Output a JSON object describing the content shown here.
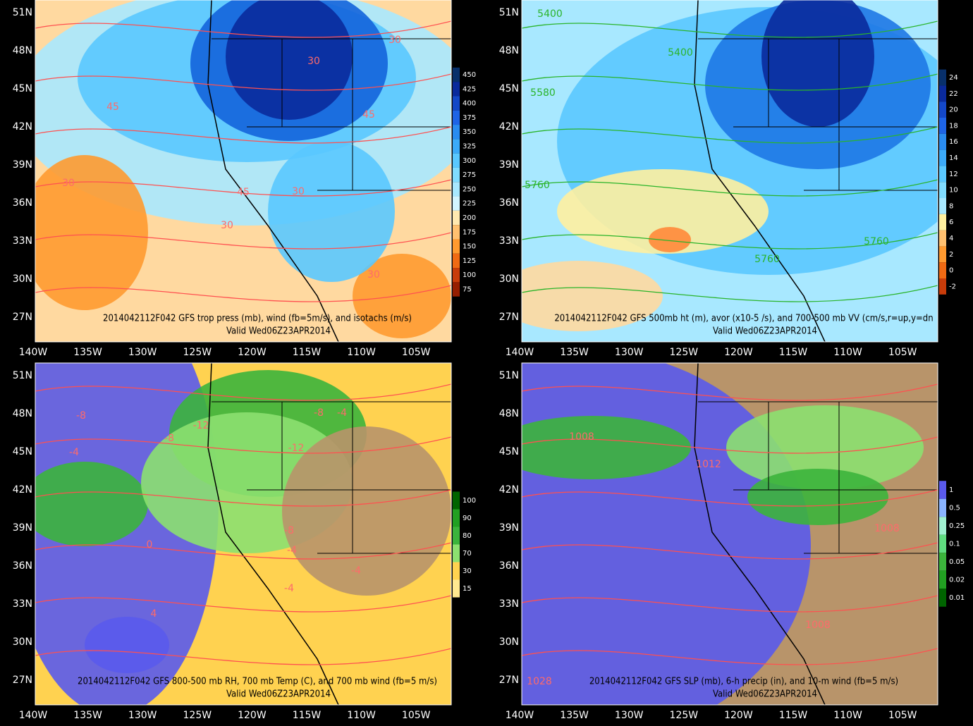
{
  "valid": "Valid Wed06Z23APR2014",
  "lat_labels": [
    "51N",
    "48N",
    "45N",
    "42N",
    "39N",
    "36N",
    "33N",
    "30N",
    "27N"
  ],
  "lon_labels": [
    "140W",
    "135W",
    "130W",
    "125W",
    "120W",
    "115W",
    "110W",
    "105W"
  ],
  "panels": [
    {
      "title": "2014042112F042 GFS trop press (mb), wind (fb=5m/s), and isotachs (m/s)",
      "colorbar": [
        "450",
        "425",
        "400",
        "375",
        "350",
        "325",
        "300",
        "275",
        "250",
        "225",
        "200",
        "175",
        "150",
        "125",
        "100",
        "75"
      ],
      "contour_labels": [
        "30",
        "30",
        "45",
        "45",
        "30",
        "45",
        "30",
        "30",
        "30"
      ]
    },
    {
      "title": "2014042112F042 GFS 500mb ht (m), avor (x10-5 /s), and 700-500 mb VV (cm/s,r=up,y=dn",
      "colorbar": [
        "24",
        "22",
        "20",
        "18",
        "16",
        "14",
        "12",
        "10",
        "8",
        "6",
        "4",
        "2",
        "0",
        "-2"
      ],
      "contour_labels": [
        "5400",
        "5400",
        "5580",
        "5760",
        "5760",
        "5760"
      ]
    },
    {
      "title": "2014042112F042 GFS 800-500 mb RH, 700 mb Temp (C), and 700 mb wind (fb=5 m/s)",
      "colorbar": [
        "100",
        "90",
        "80",
        "70",
        "30",
        "15"
      ],
      "contour_labels": [
        "-8",
        "-12",
        "-8",
        "-4",
        "-8",
        "-4",
        "-12",
        "0",
        "-8",
        "-4",
        "-4",
        "4",
        "-4"
      ]
    },
    {
      "title": "2014042112F042 GFS SLP (mb), 6-h precip (in), and 10-m wind (fb=5 m/s)",
      "colorbar": [
        "1",
        "0.5",
        "0.25",
        "0.1",
        "0.05",
        "0.02",
        "0.01"
      ],
      "contour_labels": [
        "1008",
        "1012",
        "1008",
        "1008",
        "1028"
      ]
    }
  ]
}
